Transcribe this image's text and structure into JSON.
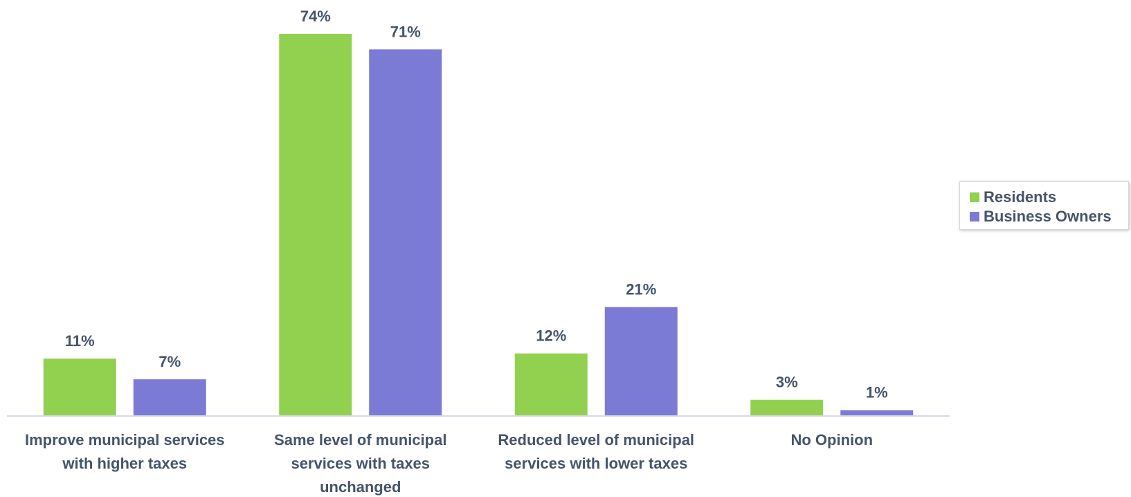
{
  "chart_data": {
    "type": "bar",
    "categories": [
      [
        "Improve municipal services",
        "with higher taxes"
      ],
      [
        "Same level of municipal",
        "services with taxes",
        "unchanged"
      ],
      [
        "Reduced level of municipal",
        "services with lower taxes"
      ],
      [
        "No Opinion"
      ]
    ],
    "series": [
      {
        "name": "Residents",
        "color": "#92d050",
        "values": [
          11,
          74,
          12,
          3
        ],
        "labels": [
          "11%",
          "74%",
          "12%",
          "3%"
        ]
      },
      {
        "name": "Business Owners",
        "color": "#7b7bd6",
        "values": [
          7,
          71,
          21,
          1
        ],
        "labels": [
          "7%",
          "71%",
          "21%",
          "1%"
        ]
      }
    ],
    "ylim": [
      0,
      74
    ],
    "grid": false,
    "legend_position": "right"
  }
}
